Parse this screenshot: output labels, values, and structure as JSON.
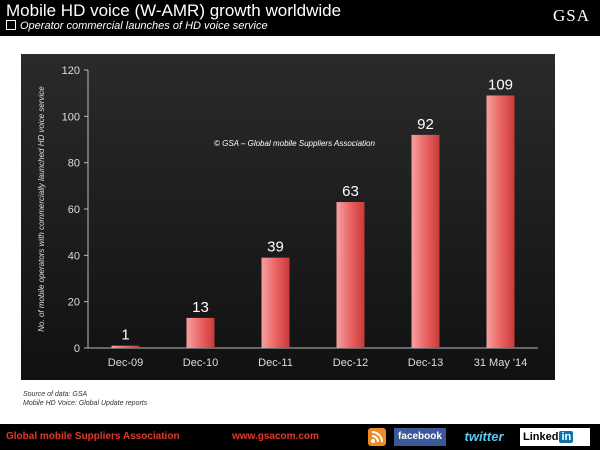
{
  "header": {
    "title": "Mobile HD voice (W-AMR) growth worldwide",
    "subtitle": "Operator commercial launches of HD voice service",
    "logo": "GSA"
  },
  "chart_data": {
    "type": "bar",
    "categories": [
      "Dec-09",
      "Dec-10",
      "Dec-11",
      "Dec-12",
      "Dec-13",
      "31 May '14"
    ],
    "values": [
      1,
      13,
      39,
      63,
      92,
      109
    ],
    "ylabel": "No. of mobile operators with commercially launched HD voice service",
    "xlabel": "",
    "ylim": [
      0,
      120
    ],
    "yticks": [
      0,
      20,
      40,
      60,
      80,
      100,
      120
    ],
    "annotation": "© GSA – Global mobile Suppliers Association",
    "grid": false,
    "bar_color": "#e35050",
    "background": "#1a1a1a"
  },
  "source": {
    "line1": "Source of data: GSA",
    "line2": "Mobile HD Voice: Global Update reports"
  },
  "footer": {
    "org": "Global mobile Suppliers Association",
    "url": "www.gsacom.com",
    "facebook": "facebook",
    "twitter": "twitter",
    "linkedin_text": "Linked",
    "linkedin_in": "in"
  }
}
